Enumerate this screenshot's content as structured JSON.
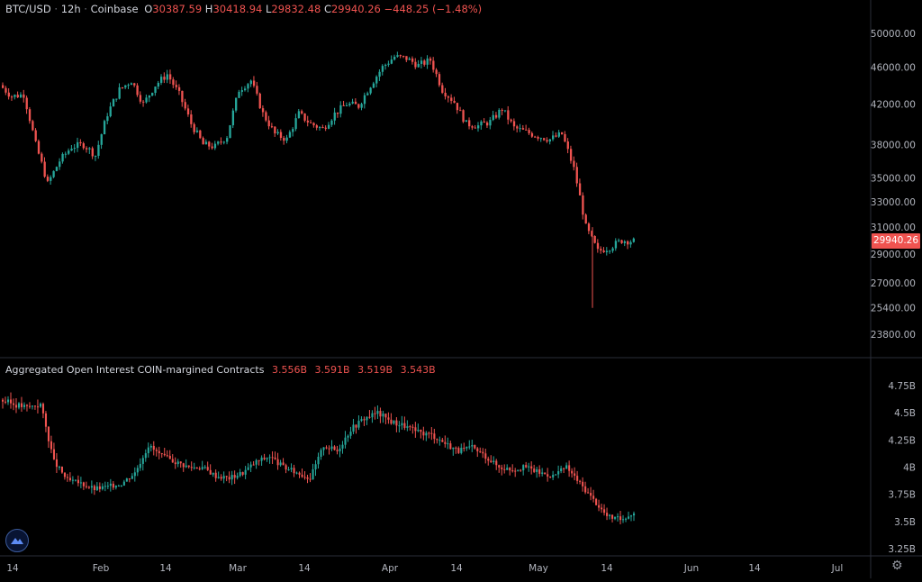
{
  "header": {
    "symbol": "BTC/USD",
    "interval": "12h",
    "exchange": "Coinbase",
    "ohlc_labels": [
      "O",
      "H",
      "L",
      "C"
    ],
    "ohlc_values": [
      "30387.59",
      "30418.94",
      "29832.48",
      "29940.26"
    ],
    "change": "−448.25 (−1.48%)"
  },
  "last_price": "29940.26",
  "indicator": {
    "title": "Aggregated Open Interest COIN-margined Contracts",
    "values": [
      "3.556B",
      "3.591B",
      "3.519B",
      "3.543B"
    ]
  },
  "colors": {
    "up": "#26a69a",
    "down": "#ef5350",
    "background": "#000000",
    "grid": "#2a2e39",
    "text": "#b2b5be"
  },
  "icons": [
    "tradingview-logo-icon",
    "gear-icon"
  ],
  "chart_data": [
    {
      "type": "candlestick",
      "name": "BTC/USD",
      "y_scale": "log",
      "y_ticks": [
        "50000.00",
        "46000.00",
        "42000.00",
        "38000.00",
        "35000.00",
        "33000.00",
        "31000.00",
        "29000.00",
        "27000.00",
        "25400.00",
        "23800.00"
      ],
      "x_ticks": [
        "14",
        "Feb",
        "14",
        "Mar",
        "14",
        "Apr",
        "14",
        "May",
        "14",
        "Jun",
        "14",
        "Jul"
      ],
      "close_path": [
        44000,
        42800,
        43000,
        38000,
        34500,
        36500,
        37800,
        38000,
        37000,
        41000,
        43500,
        44500,
        42000,
        44000,
        45200,
        43000,
        40000,
        38000,
        37800,
        38800,
        43500,
        44500,
        41000,
        39000,
        38500,
        41000,
        40000,
        39500,
        41000,
        42000,
        41800,
        44000,
        46000,
        47200,
        47000,
        46200,
        46800,
        43500,
        42200,
        40000,
        39800,
        40200,
        41500,
        39600,
        39200,
        38800,
        38500,
        39000,
        35800,
        31000,
        29200,
        29500,
        30000,
        29940
      ],
      "lows": [
        {
          "index": 48,
          "value": 25400
        }
      ]
    },
    {
      "type": "candlestick",
      "name": "Aggregated Open Interest COIN-margined Contracts",
      "y_ticks": [
        "4.75B",
        "4.5B",
        "4.25B",
        "4B",
        "3.75B",
        "3.5B",
        "3.25B"
      ],
      "close_path": [
        4.62,
        4.58,
        4.55,
        4.58,
        4.05,
        3.88,
        3.85,
        3.8,
        3.82,
        3.85,
        3.95,
        4.2,
        4.1,
        4.05,
        4.0,
        4.0,
        3.92,
        3.9,
        3.95,
        4.05,
        4.1,
        4.0,
        3.95,
        3.9,
        4.2,
        4.15,
        4.35,
        4.45,
        4.5,
        4.42,
        4.38,
        4.32,
        4.3,
        4.22,
        4.15,
        4.18,
        4.1,
        4.0,
        3.98,
        4.0,
        3.95,
        3.92,
        4.0,
        3.85,
        3.7,
        3.55,
        3.52,
        3.58
      ]
    }
  ]
}
